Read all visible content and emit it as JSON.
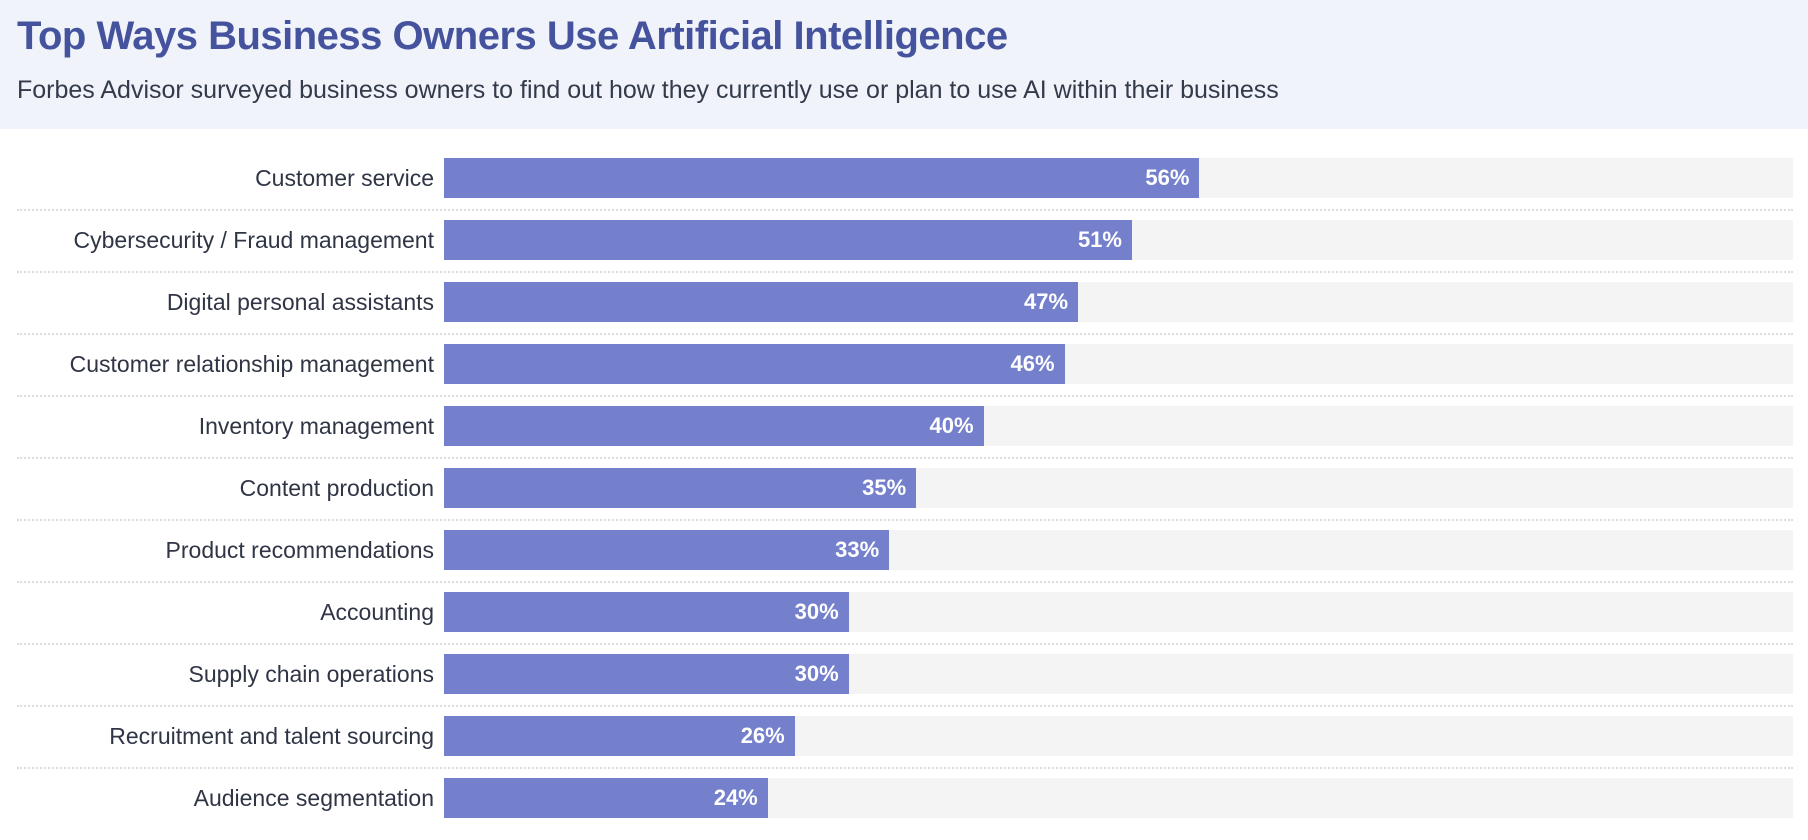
{
  "chart_data": {
    "type": "bar",
    "orientation": "horizontal",
    "title": "Top Ways Business Owners Use Artificial Intelligence",
    "subtitle": "Forbes Advisor surveyed business owners to find out how they currently use or plan to use AI within their business",
    "categories": [
      "Customer service",
      "Cybersecurity / Fraud management",
      "Digital personal assistants",
      "Customer relationship management",
      "Inventory management",
      "Content production",
      "Product recommendations",
      "Accounting",
      "Supply chain operations",
      "Recruitment and talent sourcing",
      "Audience segmentation"
    ],
    "values": [
      56,
      51,
      47,
      46,
      40,
      35,
      33,
      30,
      30,
      26,
      24
    ],
    "value_labels": [
      "56%",
      "51%",
      "47%",
      "46%",
      "40%",
      "35%",
      "33%",
      "30%",
      "30%",
      "26%",
      "24%"
    ],
    "xlim": [
      0,
      100
    ],
    "grid": false,
    "legend": "none",
    "colors": {
      "bar": "#7480cc",
      "track": "#f4f4f4",
      "title": "#45539e",
      "header_bg": "#f0f3f9"
    }
  }
}
